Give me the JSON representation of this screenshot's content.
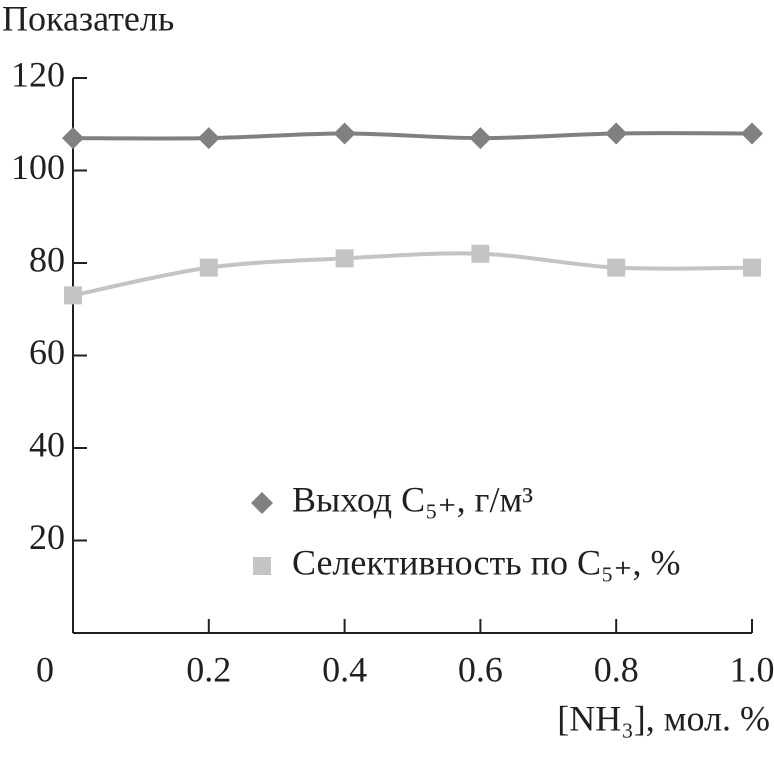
{
  "chart_data": {
    "type": "line",
    "y_label": "Показатель",
    "x_label": "[NH₃], мол. %",
    "x": [
      0,
      0.2,
      0.4,
      0.6,
      0.8,
      1.0
    ],
    "series": [
      {
        "name": "Выход C₅₊, г/м³",
        "color": "#808080",
        "marker": "diamond",
        "values": [
          107,
          107,
          108,
          107,
          108,
          108
        ]
      },
      {
        "name": "Селективность по C₅₊, %",
        "color": "#c4c4c4",
        "marker": "square",
        "values": [
          73,
          79,
          81,
          82,
          79,
          79
        ]
      }
    ],
    "xlim": [
      0,
      1
    ],
    "xticks": [
      0,
      0.2,
      0.4,
      0.6,
      0.8,
      {
        "value": 1,
        "label": "1.0"
      }
    ],
    "ylim": [
      0,
      120
    ],
    "yticks": [
      20,
      40,
      60,
      80,
      100,
      120
    ],
    "legend": "lower right"
  }
}
